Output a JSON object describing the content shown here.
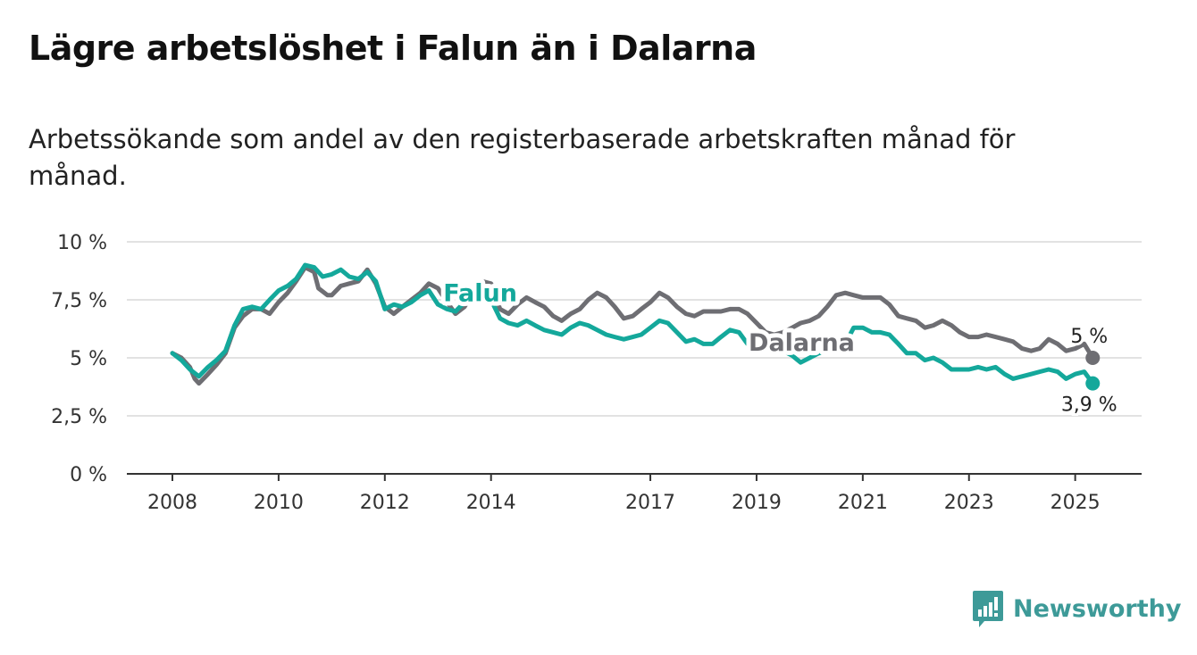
{
  "title": "Lägre arbetslöshet i Falun än i Dalarna",
  "subtitle": "Arbetssökande som andel av den registerbaserade arbetskraften månad för månad.",
  "brand": {
    "name": "Newsworthy",
    "color": "#3d9a98",
    "icon": "newsworthy-chart-icon"
  },
  "chart_data": {
    "type": "line",
    "title": "Lägre arbetslöshet i Falun än i Dalarna",
    "xlabel": "",
    "ylabel": "",
    "xlim": [
      2007.9,
      2025.6
    ],
    "ylim": [
      0,
      10
    ],
    "y_ticks": [
      0,
      2.5,
      5,
      7.5,
      10
    ],
    "y_tick_labels": [
      "0 %",
      "2,5 %",
      "5 %",
      "7,5 %",
      "10 %"
    ],
    "x_ticks": [
      2008,
      2010,
      2012,
      2014,
      2017,
      2019,
      2021,
      2023,
      2025
    ],
    "x_tick_labels": [
      "2008",
      "2010",
      "2012",
      "2014",
      "2017",
      "2019",
      "2021",
      "2023",
      "2025"
    ],
    "grid": true,
    "legend": "inline labels",
    "series": [
      {
        "name": "Dalarna",
        "color": "#6e6e73",
        "label_at": [
          2018.85,
          5.3
        ],
        "end_label": "5 %",
        "points": [
          [
            2008.0,
            5.2
          ],
          [
            2008.17,
            5.0
          ],
          [
            2008.33,
            4.6
          ],
          [
            2008.42,
            4.1
          ],
          [
            2008.5,
            3.9
          ],
          [
            2008.67,
            4.3
          ],
          [
            2008.83,
            4.7
          ],
          [
            2009.0,
            5.2
          ],
          [
            2009.17,
            6.3
          ],
          [
            2009.33,
            6.8
          ],
          [
            2009.5,
            7.1
          ],
          [
            2009.67,
            7.1
          ],
          [
            2009.83,
            6.9
          ],
          [
            2010.0,
            7.4
          ],
          [
            2010.17,
            7.8
          ],
          [
            2010.33,
            8.3
          ],
          [
            2010.5,
            8.9
          ],
          [
            2010.67,
            8.7
          ],
          [
            2010.75,
            8.0
          ],
          [
            2010.92,
            7.7
          ],
          [
            2011.0,
            7.7
          ],
          [
            2011.17,
            8.1
          ],
          [
            2011.33,
            8.2
          ],
          [
            2011.5,
            8.3
          ],
          [
            2011.67,
            8.8
          ],
          [
            2011.83,
            8.2
          ],
          [
            2012.0,
            7.2
          ],
          [
            2012.17,
            6.9
          ],
          [
            2012.33,
            7.2
          ],
          [
            2012.5,
            7.5
          ],
          [
            2012.67,
            7.8
          ],
          [
            2012.83,
            8.2
          ],
          [
            2013.0,
            8.0
          ],
          [
            2013.17,
            7.4
          ],
          [
            2013.33,
            6.9
          ],
          [
            2013.5,
            7.2
          ],
          [
            2013.67,
            7.8
          ],
          [
            2013.83,
            8.3
          ],
          [
            2014.0,
            8.2
          ],
          [
            2014.17,
            7.1
          ],
          [
            2014.33,
            6.9
          ],
          [
            2014.5,
            7.3
          ],
          [
            2014.67,
            7.6
          ],
          [
            2014.83,
            7.4
          ],
          [
            2015.0,
            7.2
          ],
          [
            2015.17,
            6.8
          ],
          [
            2015.33,
            6.6
          ],
          [
            2015.5,
            6.9
          ],
          [
            2015.67,
            7.1
          ],
          [
            2015.83,
            7.5
          ],
          [
            2016.0,
            7.8
          ],
          [
            2016.17,
            7.6
          ],
          [
            2016.33,
            7.2
          ],
          [
            2016.5,
            6.7
          ],
          [
            2016.67,
            6.8
          ],
          [
            2016.83,
            7.1
          ],
          [
            2017.0,
            7.4
          ],
          [
            2017.17,
            7.8
          ],
          [
            2017.33,
            7.6
          ],
          [
            2017.5,
            7.2
          ],
          [
            2017.67,
            6.9
          ],
          [
            2017.83,
            6.8
          ],
          [
            2018.0,
            7.0
          ],
          [
            2018.17,
            7.0
          ],
          [
            2018.33,
            7.0
          ],
          [
            2018.5,
            7.1
          ],
          [
            2018.67,
            7.1
          ],
          [
            2018.83,
            6.9
          ],
          [
            2019.0,
            6.5
          ],
          [
            2019.17,
            6.1
          ],
          [
            2019.33,
            6.0
          ],
          [
            2019.5,
            6.1
          ],
          [
            2019.67,
            6.3
          ],
          [
            2019.83,
            6.5
          ],
          [
            2020.0,
            6.6
          ],
          [
            2020.17,
            6.8
          ],
          [
            2020.33,
            7.2
          ],
          [
            2020.5,
            7.7
          ],
          [
            2020.67,
            7.8
          ],
          [
            2020.83,
            7.7
          ],
          [
            2021.0,
            7.6
          ],
          [
            2021.17,
            7.6
          ],
          [
            2021.33,
            7.6
          ],
          [
            2021.5,
            7.3
          ],
          [
            2021.67,
            6.8
          ],
          [
            2021.83,
            6.7
          ],
          [
            2022.0,
            6.6
          ],
          [
            2022.17,
            6.3
          ],
          [
            2022.33,
            6.4
          ],
          [
            2022.5,
            6.6
          ],
          [
            2022.67,
            6.4
          ],
          [
            2022.83,
            6.1
          ],
          [
            2023.0,
            5.9
          ],
          [
            2023.17,
            5.9
          ],
          [
            2023.33,
            6.0
          ],
          [
            2023.5,
            5.9
          ],
          [
            2023.67,
            5.8
          ],
          [
            2023.83,
            5.7
          ],
          [
            2024.0,
            5.4
          ],
          [
            2024.17,
            5.3
          ],
          [
            2024.33,
            5.4
          ],
          [
            2024.5,
            5.8
          ],
          [
            2024.67,
            5.6
          ],
          [
            2024.83,
            5.3
          ],
          [
            2025.0,
            5.4
          ],
          [
            2025.17,
            5.6
          ],
          [
            2025.33,
            5.0
          ]
        ]
      },
      {
        "name": "Falun",
        "color": "#14a89b",
        "label_at": [
          2013.1,
          7.45
        ],
        "end_label": "3,9 %",
        "points": [
          [
            2008.0,
            5.2
          ],
          [
            2008.17,
            4.9
          ],
          [
            2008.33,
            4.5
          ],
          [
            2008.5,
            4.2
          ],
          [
            2008.67,
            4.6
          ],
          [
            2008.83,
            4.9
          ],
          [
            2009.0,
            5.3
          ],
          [
            2009.17,
            6.4
          ],
          [
            2009.33,
            7.1
          ],
          [
            2009.5,
            7.2
          ],
          [
            2009.67,
            7.1
          ],
          [
            2009.83,
            7.5
          ],
          [
            2010.0,
            7.9
          ],
          [
            2010.17,
            8.1
          ],
          [
            2010.33,
            8.4
          ],
          [
            2010.5,
            9.0
          ],
          [
            2010.67,
            8.9
          ],
          [
            2010.83,
            8.5
          ],
          [
            2011.0,
            8.6
          ],
          [
            2011.17,
            8.8
          ],
          [
            2011.33,
            8.5
          ],
          [
            2011.5,
            8.4
          ],
          [
            2011.67,
            8.7
          ],
          [
            2011.83,
            8.3
          ],
          [
            2012.0,
            7.1
          ],
          [
            2012.17,
            7.3
          ],
          [
            2012.33,
            7.2
          ],
          [
            2012.5,
            7.4
          ],
          [
            2012.67,
            7.7
          ],
          [
            2012.83,
            7.9
          ],
          [
            2013.0,
            7.3
          ],
          [
            2013.17,
            7.1
          ],
          [
            2013.33,
            7.0
          ],
          [
            2013.5,
            7.4
          ],
          [
            2013.67,
            7.6
          ],
          [
            2013.83,
            7.9
          ],
          [
            2014.0,
            7.5
          ],
          [
            2014.17,
            6.7
          ],
          [
            2014.33,
            6.5
          ],
          [
            2014.5,
            6.4
          ],
          [
            2014.67,
            6.6
          ],
          [
            2014.83,
            6.4
          ],
          [
            2015.0,
            6.2
          ],
          [
            2015.17,
            6.1
          ],
          [
            2015.33,
            6.0
          ],
          [
            2015.5,
            6.3
          ],
          [
            2015.67,
            6.5
          ],
          [
            2015.83,
            6.4
          ],
          [
            2016.0,
            6.2
          ],
          [
            2016.17,
            6.0
          ],
          [
            2016.33,
            5.9
          ],
          [
            2016.5,
            5.8
          ],
          [
            2016.67,
            5.9
          ],
          [
            2016.83,
            6.0
          ],
          [
            2017.0,
            6.3
          ],
          [
            2017.17,
            6.6
          ],
          [
            2017.33,
            6.5
          ],
          [
            2017.5,
            6.1
          ],
          [
            2017.67,
            5.7
          ],
          [
            2017.83,
            5.8
          ],
          [
            2018.0,
            5.6
          ],
          [
            2018.17,
            5.6
          ],
          [
            2018.33,
            5.9
          ],
          [
            2018.5,
            6.2
          ],
          [
            2018.67,
            6.1
          ],
          [
            2018.83,
            5.6
          ],
          [
            2019.0,
            5.4
          ],
          [
            2019.17,
            5.4
          ],
          [
            2019.33,
            5.4
          ],
          [
            2019.5,
            5.3
          ],
          [
            2019.67,
            5.1
          ],
          [
            2019.83,
            4.8
          ],
          [
            2020.0,
            5.0
          ],
          [
            2020.17,
            5.2
          ],
          [
            2020.33,
            5.3
          ],
          [
            2020.5,
            5.5
          ],
          [
            2020.67,
            5.6
          ],
          [
            2020.83,
            6.3
          ],
          [
            2021.0,
            6.3
          ],
          [
            2021.17,
            6.1
          ],
          [
            2021.33,
            6.1
          ],
          [
            2021.5,
            6.0
          ],
          [
            2021.67,
            5.6
          ],
          [
            2021.83,
            5.2
          ],
          [
            2022.0,
            5.2
          ],
          [
            2022.17,
            4.9
          ],
          [
            2022.33,
            5.0
          ],
          [
            2022.5,
            4.8
          ],
          [
            2022.67,
            4.5
          ],
          [
            2022.83,
            4.5
          ],
          [
            2023.0,
            4.5
          ],
          [
            2023.17,
            4.6
          ],
          [
            2023.33,
            4.5
          ],
          [
            2023.5,
            4.6
          ],
          [
            2023.67,
            4.3
          ],
          [
            2023.83,
            4.1
          ],
          [
            2024.0,
            4.2
          ],
          [
            2024.17,
            4.3
          ],
          [
            2024.33,
            4.4
          ],
          [
            2024.5,
            4.5
          ],
          [
            2024.67,
            4.4
          ],
          [
            2024.83,
            4.1
          ],
          [
            2025.0,
            4.3
          ],
          [
            2025.17,
            4.4
          ],
          [
            2025.33,
            3.9
          ]
        ]
      }
    ]
  }
}
